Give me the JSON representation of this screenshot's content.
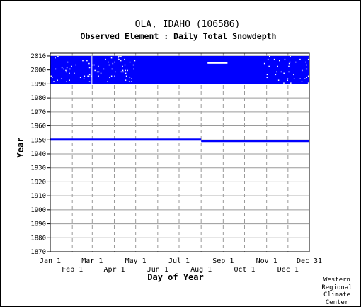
{
  "chart_data": {
    "type": "scatter",
    "title": "OLA, IDAHO   (106586)",
    "subtitle": "Observed Element : Daily Total Snowdepth",
    "xlabel": "Day of Year",
    "ylabel": "Year",
    "xlim": [
      1,
      365
    ],
    "ylim": [
      1870,
      2012
    ],
    "x_ticks_top_row": [
      {
        "label": "Jan 1",
        "day": 1
      },
      {
        "label": "Mar 1",
        "day": 60
      },
      {
        "label": "May 1",
        "day": 121
      },
      {
        "label": "Jul 1",
        "day": 182
      },
      {
        "label": "Sep 1",
        "day": 244
      },
      {
        "label": "Nov 1",
        "day": 305
      },
      {
        "label": "Dec 31",
        "day": 365
      }
    ],
    "x_ticks_bottom_row": [
      {
        "label": "Feb 1",
        "day": 32
      },
      {
        "label": "Apr 1",
        "day": 91
      },
      {
        "label": "Jun 1",
        "day": 152
      },
      {
        "label": "Aug 1",
        "day": 213
      },
      {
        "label": "Oct 1",
        "day": 274
      },
      {
        "label": "Dec 1",
        "day": 335
      }
    ],
    "y_ticks": [
      1870,
      1880,
      1890,
      1900,
      1910,
      1920,
      1930,
      1940,
      1950,
      1960,
      1970,
      1980,
      1990,
      2000,
      2010
    ],
    "grid": true,
    "series": [
      {
        "color": "#0000ff",
        "segments": [
          {
            "year_from": 1950,
            "year_to": 1950,
            "day_from": 1,
            "day_to": 213
          },
          {
            "year_from": 1949,
            "year_to": 1949,
            "day_from": 213,
            "day_to": 365
          },
          {
            "year_from": 1990,
            "year_to": 2009,
            "day_from": 1,
            "day_to": 365
          }
        ]
      }
    ],
    "missing_color": "#ffffff"
  },
  "credit": [
    "Western",
    "Regional",
    "Climate",
    "Center"
  ]
}
